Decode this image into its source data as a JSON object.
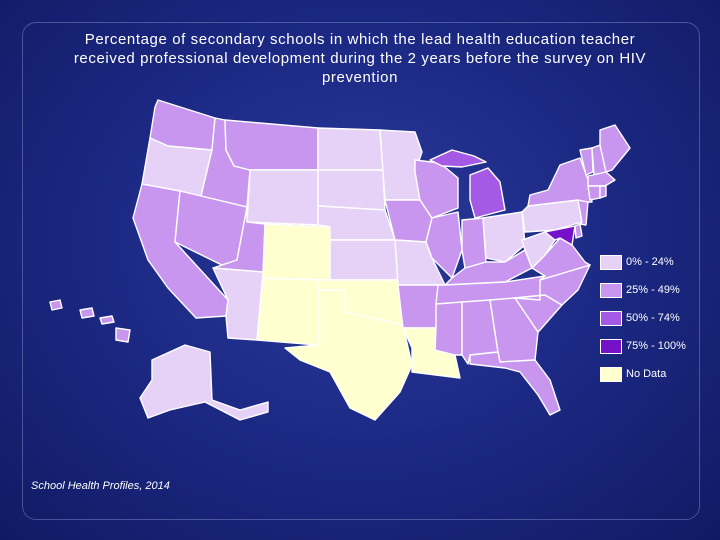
{
  "title": {
    "line1": "Percentage of secondary schools in which the lead health education teacher",
    "line2": "received professional development during the 2 years before the survey on HIV",
    "line3": "prevention"
  },
  "source": "School Health Profiles, 2014",
  "legend": [
    {
      "label": "0% - 24%",
      "color": "#e7d2f7"
    },
    {
      "label": "25% - 49%",
      "color": "#c896ee"
    },
    {
      "label": "50% - 74%",
      "color": "#a55ae6"
    },
    {
      "label": "75% - 100%",
      "color": "#7511c9"
    },
    {
      "label": "No Data",
      "color": "#ffffd0"
    }
  ],
  "colors": {
    "background": "#1d2a86",
    "state_border": "#ffffff"
  },
  "map_data": {
    "WA": "25-49%",
    "OR": "0-24%",
    "CA": "25-49%",
    "ID": "25-49%",
    "NV": "25-49%",
    "MT": "25-49%",
    "WY": "0-24%",
    "UT": "25-49%",
    "AZ": "0-24%",
    "CO": "No Data",
    "NM": "No Data",
    "ND": "0-24%",
    "SD": "0-24%",
    "NE": "0-24%",
    "KS": "0-24%",
    "OK": "No Data",
    "TX": "No Data",
    "MN": "0-24%",
    "IA": "25-49%",
    "MO": "0-24%",
    "AR": "25-49%",
    "LA": "No Data",
    "WI": "25-49%",
    "IL": "25-49%",
    "MI": "50-74%",
    "IN": "25-49%",
    "OH": "0-24%",
    "KY": "25-49%",
    "TN": "25-49%",
    "MS": "25-49%",
    "AL": "25-49%",
    "GA": "25-49%",
    "FL": "25-49%",
    "SC": "25-49%",
    "NC": "25-49%",
    "VA": "25-49%",
    "WV": "0-24%",
    "MD": "75-100%",
    "DE": "25-49%",
    "PA": "0-24%",
    "NJ": "25-49%",
    "NY": "25-49%",
    "CT": "25-49%",
    "RI": "25-49%",
    "MA": "25-49%",
    "VT": "25-49%",
    "NH": "25-49%",
    "ME": "25-49%",
    "AK": "0-24%",
    "HI": "25-49%"
  }
}
